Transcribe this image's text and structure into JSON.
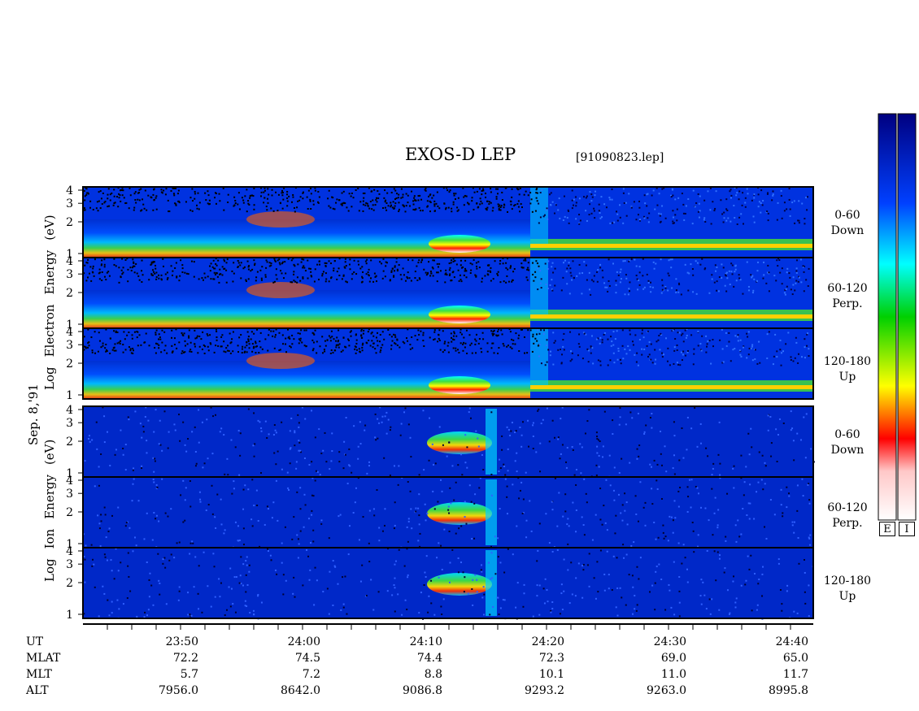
{
  "title": "EXOS-D LEP",
  "file_label": "[91090823.lep]",
  "date_label": "Sep. 8,'91",
  "electron_group": {
    "words": [
      "Log",
      "Electron",
      "Energy",
      "(eV)"
    ]
  },
  "ion_group": {
    "words": [
      "Log",
      "Ion",
      "Energy",
      "(eV)"
    ]
  },
  "colorbar": {
    "labels": [
      "E",
      "I"
    ],
    "colors": [
      "#ffffff",
      "#ff0000",
      "#ffff00",
      "#00d000",
      "#00ffff",
      "#0040ff",
      "#000080"
    ]
  },
  "chart_data": {
    "type": "heatmap",
    "title": "EXOS-D LEP",
    "x_ticks": [
      "23:50",
      "24:00",
      "24:10",
      "24:20",
      "24:30",
      "24:40"
    ],
    "y_ticks": [
      "1",
      "2",
      "3",
      "4"
    ],
    "y_scale": "log",
    "panels": [
      {
        "species": "Electron",
        "pitch_angle": "0-60",
        "direction": "Down"
      },
      {
        "species": "Electron",
        "pitch_angle": "60-120",
        "direction": "Perp."
      },
      {
        "species": "Electron",
        "pitch_angle": "120-180",
        "direction": "Up"
      },
      {
        "species": "Ion",
        "pitch_angle": "0-60",
        "direction": "Down"
      },
      {
        "species": "Ion",
        "pitch_angle": "60-120",
        "direction": "Perp."
      },
      {
        "species": "Ion",
        "pitch_angle": "120-180",
        "direction": "Up"
      }
    ]
  },
  "orbit_table": {
    "rows": [
      {
        "name": "UT",
        "values": [
          "23:50",
          "24:00",
          "24:10",
          "24:20",
          "24:30",
          "24:40"
        ]
      },
      {
        "name": "MLAT",
        "values": [
          "72.2",
          "74.5",
          "74.4",
          "72.3",
          "69.0",
          "65.0"
        ]
      },
      {
        "name": "MLT",
        "values": [
          "5.7",
          "7.2",
          "8.8",
          "10.1",
          "11.0",
          "11.7"
        ]
      },
      {
        "name": "ALT",
        "values": [
          "7956.0",
          "8642.0",
          "9086.8",
          "9293.2",
          "9263.0",
          "8995.8"
        ]
      }
    ]
  }
}
